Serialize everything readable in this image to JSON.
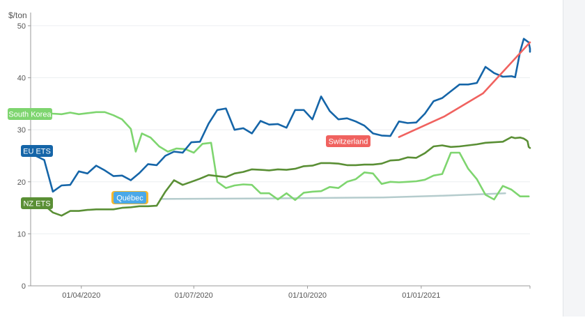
{
  "chart_data": {
    "type": "line",
    "ylabel": "$/ton",
    "ylim": [
      0,
      52
    ],
    "yticks": [
      0,
      10,
      20,
      30,
      40,
      50
    ],
    "xlim": [
      "2020-02-20",
      "2021-03-30"
    ],
    "xticks": [
      "2020-04-01",
      "2020-07-01",
      "2020-10-01",
      "2021-01-01"
    ],
    "xtick_labels": [
      "01/04/2020",
      "01/07/2020",
      "01/10/2020",
      "01/01/2021"
    ],
    "grid": "horizontal",
    "series": [
      {
        "name": "South Korea",
        "color": "#7ed56f",
        "label_color": "#7ed56f",
        "label_text_color": "#ffffff",
        "points": [
          [
            "2020-02-24",
            33.2
          ],
          [
            "2020-03-02",
            33.3
          ],
          [
            "2020-03-09",
            33.1
          ],
          [
            "2020-03-16",
            33.0
          ],
          [
            "2020-03-23",
            33.3
          ],
          [
            "2020-03-30",
            33.0
          ],
          [
            "2020-04-06",
            33.2
          ],
          [
            "2020-04-13",
            33.4
          ],
          [
            "2020-04-20",
            33.4
          ],
          [
            "2020-04-27",
            32.8
          ],
          [
            "2020-05-04",
            32.0
          ],
          [
            "2020-05-11",
            30.2
          ],
          [
            "2020-05-15",
            25.8
          ],
          [
            "2020-05-20",
            29.3
          ],
          [
            "2020-05-27",
            28.5
          ],
          [
            "2020-06-03",
            26.8
          ],
          [
            "2020-06-10",
            25.8
          ],
          [
            "2020-06-17",
            26.4
          ],
          [
            "2020-06-24",
            26.3
          ],
          [
            "2020-07-01",
            25.6
          ],
          [
            "2020-07-08",
            27.3
          ],
          [
            "2020-07-15",
            27.5
          ],
          [
            "2020-07-20",
            20.0
          ],
          [
            "2020-07-27",
            18.8
          ],
          [
            "2020-08-03",
            19.3
          ],
          [
            "2020-08-10",
            19.5
          ],
          [
            "2020-08-17",
            19.4
          ],
          [
            "2020-08-24",
            17.8
          ],
          [
            "2020-08-31",
            17.8
          ],
          [
            "2020-09-07",
            16.6
          ],
          [
            "2020-09-14",
            17.8
          ],
          [
            "2020-09-21",
            16.5
          ],
          [
            "2020-09-28",
            17.9
          ],
          [
            "2020-10-05",
            18.1
          ],
          [
            "2020-10-12",
            18.2
          ],
          [
            "2020-10-19",
            19.0
          ],
          [
            "2020-10-26",
            18.8
          ],
          [
            "2020-11-02",
            20.0
          ],
          [
            "2020-11-09",
            20.5
          ],
          [
            "2020-11-16",
            21.8
          ],
          [
            "2020-11-23",
            21.6
          ],
          [
            "2020-11-30",
            19.6
          ],
          [
            "2020-12-07",
            20.0
          ],
          [
            "2020-12-14",
            19.9
          ],
          [
            "2020-12-21",
            20.0
          ],
          [
            "2020-12-28",
            20.1
          ],
          [
            "2021-01-04",
            20.4
          ],
          [
            "2021-01-11",
            21.2
          ],
          [
            "2021-01-18",
            21.5
          ],
          [
            "2021-01-25",
            25.6
          ],
          [
            "2021-02-01",
            25.6
          ],
          [
            "2021-02-08",
            22.5
          ],
          [
            "2021-02-15",
            20.5
          ],
          [
            "2021-02-22",
            17.5
          ],
          [
            "2021-03-01",
            16.6
          ],
          [
            "2021-03-08",
            19.2
          ],
          [
            "2021-03-15",
            18.5
          ],
          [
            "2021-03-22",
            17.2
          ],
          [
            "2021-03-29",
            17.2
          ]
        ]
      },
      {
        "name": "EU ETS",
        "color": "#1565a8",
        "label_color": "#1565a8",
        "label_text_color": "#ffffff",
        "points": [
          [
            "2020-02-24",
            25.0
          ],
          [
            "2020-03-02",
            24.2
          ],
          [
            "2020-03-09",
            18.1
          ],
          [
            "2020-03-16",
            19.3
          ],
          [
            "2020-03-23",
            19.4
          ],
          [
            "2020-03-30",
            22.0
          ],
          [
            "2020-04-06",
            21.6
          ],
          [
            "2020-04-13",
            23.1
          ],
          [
            "2020-04-20",
            22.2
          ],
          [
            "2020-04-27",
            21.1
          ],
          [
            "2020-05-04",
            21.2
          ],
          [
            "2020-05-11",
            20.3
          ],
          [
            "2020-05-18",
            21.7
          ],
          [
            "2020-05-25",
            23.4
          ],
          [
            "2020-06-01",
            23.2
          ],
          [
            "2020-06-08",
            25.0
          ],
          [
            "2020-06-15",
            25.8
          ],
          [
            "2020-06-22",
            25.6
          ],
          [
            "2020-06-29",
            27.6
          ],
          [
            "2020-07-06",
            27.7
          ],
          [
            "2020-07-13",
            31.2
          ],
          [
            "2020-07-20",
            33.8
          ],
          [
            "2020-07-27",
            34.1
          ],
          [
            "2020-08-03",
            30.0
          ],
          [
            "2020-08-10",
            30.3
          ],
          [
            "2020-08-17",
            29.3
          ],
          [
            "2020-08-24",
            31.7
          ],
          [
            "2020-08-31",
            31.0
          ],
          [
            "2020-09-07",
            31.1
          ],
          [
            "2020-09-14",
            30.4
          ],
          [
            "2020-09-21",
            33.8
          ],
          [
            "2020-09-28",
            33.8
          ],
          [
            "2020-10-05",
            32.0
          ],
          [
            "2020-10-12",
            36.4
          ],
          [
            "2020-10-19",
            33.6
          ],
          [
            "2020-10-26",
            32.0
          ],
          [
            "2020-11-02",
            32.2
          ],
          [
            "2020-11-09",
            31.6
          ],
          [
            "2020-11-16",
            30.8
          ],
          [
            "2020-11-23",
            29.3
          ],
          [
            "2020-11-30",
            28.9
          ],
          [
            "2020-12-07",
            28.8
          ],
          [
            "2020-12-14",
            31.6
          ],
          [
            "2020-12-21",
            31.3
          ],
          [
            "2020-12-28",
            31.4
          ],
          [
            "2021-01-04",
            33.1
          ],
          [
            "2021-01-11",
            35.5
          ],
          [
            "2021-01-18",
            36.1
          ],
          [
            "2021-01-25",
            37.4
          ],
          [
            "2021-02-01",
            38.7
          ],
          [
            "2021-02-08",
            38.7
          ],
          [
            "2021-02-15",
            39.0
          ],
          [
            "2021-02-22",
            42.1
          ],
          [
            "2021-03-01",
            40.9
          ],
          [
            "2021-03-08",
            40.2
          ],
          [
            "2021-03-15",
            40.3
          ],
          [
            "2021-03-18",
            40.1
          ],
          [
            "2021-03-22",
            45.0
          ],
          [
            "2021-03-25",
            47.5
          ],
          [
            "2021-03-29",
            46.8
          ],
          [
            "2021-03-30",
            45.6
          ],
          [
            "2021-03-30",
            45.0
          ]
        ]
      },
      {
        "name": "Switzerland",
        "color": "#f0625f",
        "label_color": "#f0625f",
        "label_text_color": "#ffffff",
        "points": [
          [
            "2020-12-14",
            28.6
          ],
          [
            "2021-01-20",
            32.6
          ],
          [
            "2021-02-20",
            37.0
          ],
          [
            "2021-03-30",
            46.8
          ]
        ]
      },
      {
        "name": "NZ ETS",
        "color": "#5a8f35",
        "label_color": "#5a8f35",
        "label_text_color": "#ffffff",
        "points": [
          [
            "2020-02-24",
            16.4
          ],
          [
            "2020-03-02",
            15.5
          ],
          [
            "2020-03-09",
            14.1
          ],
          [
            "2020-03-16",
            13.5
          ],
          [
            "2020-03-23",
            14.4
          ],
          [
            "2020-03-30",
            14.4
          ],
          [
            "2020-04-06",
            14.6
          ],
          [
            "2020-04-13",
            14.7
          ],
          [
            "2020-04-20",
            14.7
          ],
          [
            "2020-04-27",
            14.7
          ],
          [
            "2020-05-04",
            15.0
          ],
          [
            "2020-05-11",
            15.1
          ],
          [
            "2020-05-18",
            15.3
          ],
          [
            "2020-05-25",
            15.3
          ],
          [
            "2020-06-01",
            15.4
          ],
          [
            "2020-06-08",
            18.1
          ],
          [
            "2020-06-15",
            20.3
          ],
          [
            "2020-06-22",
            19.4
          ],
          [
            "2020-06-29",
            20.0
          ],
          [
            "2020-07-06",
            20.6
          ],
          [
            "2020-07-13",
            21.3
          ],
          [
            "2020-07-20",
            21.1
          ],
          [
            "2020-07-27",
            20.9
          ],
          [
            "2020-08-03",
            21.6
          ],
          [
            "2020-08-10",
            21.9
          ],
          [
            "2020-08-17",
            22.4
          ],
          [
            "2020-08-24",
            22.3
          ],
          [
            "2020-08-31",
            22.2
          ],
          [
            "2020-09-07",
            22.4
          ],
          [
            "2020-09-14",
            22.3
          ],
          [
            "2020-09-21",
            22.5
          ],
          [
            "2020-09-28",
            23.0
          ],
          [
            "2020-10-05",
            23.1
          ],
          [
            "2020-10-12",
            23.6
          ],
          [
            "2020-10-19",
            23.6
          ],
          [
            "2020-10-26",
            23.5
          ],
          [
            "2020-11-02",
            23.2
          ],
          [
            "2020-11-09",
            23.2
          ],
          [
            "2020-11-16",
            23.3
          ],
          [
            "2020-11-23",
            23.3
          ],
          [
            "2020-11-30",
            23.5
          ],
          [
            "2020-12-07",
            24.1
          ],
          [
            "2020-12-14",
            24.2
          ],
          [
            "2020-12-21",
            24.7
          ],
          [
            "2020-12-28",
            24.6
          ],
          [
            "2021-01-04",
            25.5
          ],
          [
            "2021-01-11",
            26.8
          ],
          [
            "2021-01-18",
            27.0
          ],
          [
            "2021-01-25",
            26.7
          ],
          [
            "2021-02-01",
            26.8
          ],
          [
            "2021-02-08",
            27.0
          ],
          [
            "2021-02-15",
            27.2
          ],
          [
            "2021-02-22",
            27.5
          ],
          [
            "2021-03-01",
            27.6
          ],
          [
            "2021-03-08",
            27.7
          ],
          [
            "2021-03-15",
            28.6
          ],
          [
            "2021-03-18",
            28.4
          ],
          [
            "2021-03-22",
            28.5
          ],
          [
            "2021-03-25",
            28.3
          ],
          [
            "2021-03-27",
            28.0
          ],
          [
            "2021-03-28",
            27.8
          ],
          [
            "2021-03-29",
            26.7
          ],
          [
            "2021-03-30",
            26.5
          ]
        ]
      },
      {
        "name": "Québec",
        "color": "#b5cccd",
        "label_color": "#4aa8e8",
        "label_accent": "#f5b82e",
        "label_text_color": "#ffffff",
        "points": [
          [
            "2020-06-04",
            16.7
          ],
          [
            "2020-09-01",
            16.8
          ],
          [
            "2020-12-01",
            17.0
          ],
          [
            "2021-01-15",
            17.3
          ],
          [
            "2021-03-10",
            17.8
          ]
        ]
      }
    ]
  }
}
